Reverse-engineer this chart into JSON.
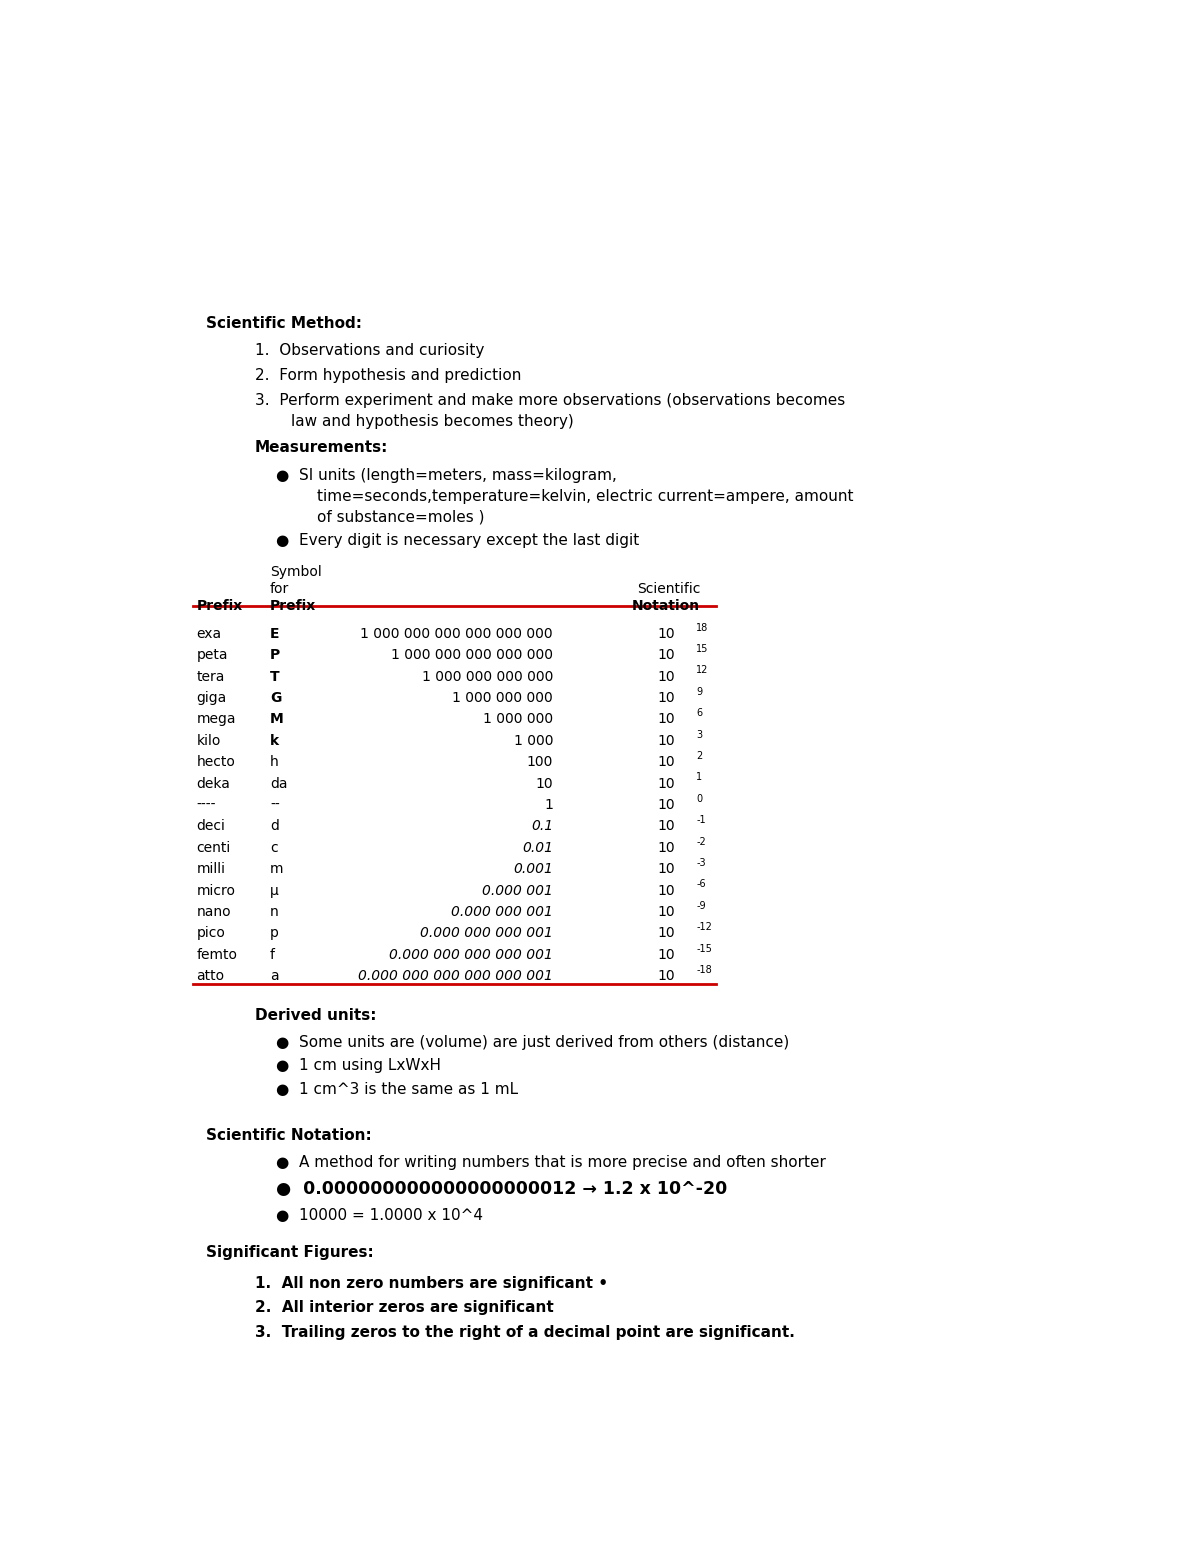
{
  "bg_color": "#ffffff",
  "table_rows": [
    [
      "exa",
      "E",
      "1 000 000 000 000 000 000",
      "18"
    ],
    [
      "peta",
      "P",
      "1 000 000 000 000 000",
      "15"
    ],
    [
      "tera",
      "T",
      "1 000 000 000 000",
      "12"
    ],
    [
      "giga",
      "G",
      "1 000 000 000",
      "9"
    ],
    [
      "mega",
      "M",
      "1 000 000",
      "6"
    ],
    [
      "kilo",
      "k",
      "1 000",
      "3"
    ],
    [
      "hecto",
      "h",
      "100",
      "2"
    ],
    [
      "deka",
      "da",
      "10",
      "1"
    ],
    [
      "----",
      "--",
      "1",
      "0"
    ],
    [
      "deci",
      "d",
      "0.1",
      "-1"
    ],
    [
      "centi",
      "c",
      "0.01",
      "-2"
    ],
    [
      "milli",
      "m",
      "0.001",
      "-3"
    ],
    [
      "micro",
      "μ",
      "0.000 001",
      "-6"
    ],
    [
      "nano",
      "n",
      "0.000 000 001",
      "-9"
    ],
    [
      "pico",
      "p",
      "0.000 000 000 001",
      "-12"
    ],
    [
      "femto",
      "f",
      "0.000 000 000 000 001",
      "-15"
    ],
    [
      "atto",
      "a",
      "0.000 000 000 000 000 001",
      "-18"
    ]
  ],
  "bold_symbols": [
    "E",
    "P",
    "T",
    "G",
    "M",
    "k"
  ],
  "line_color": "#cc0000",
  "text_color": "#000000"
}
